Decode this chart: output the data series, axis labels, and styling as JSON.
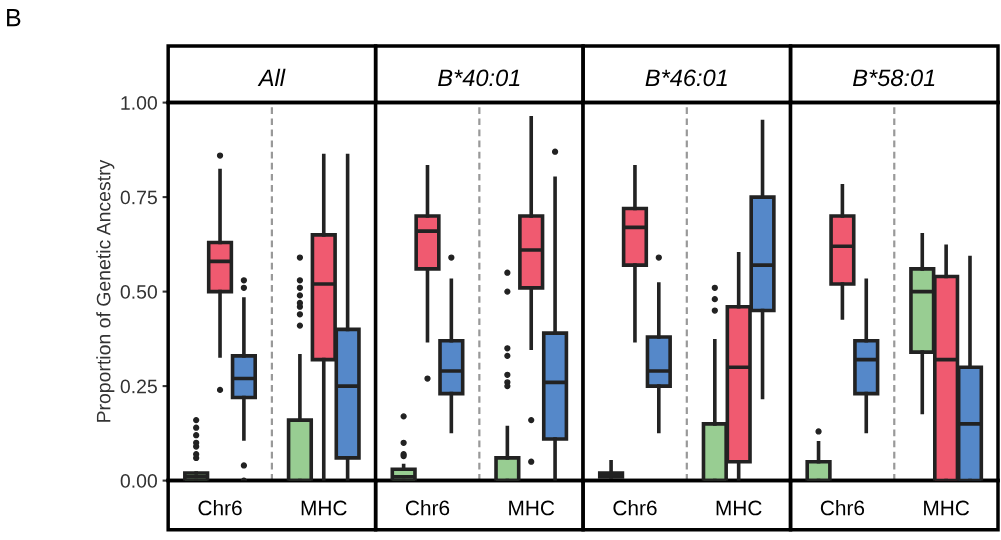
{
  "chart_data": [
    {
      "type": "box",
      "title": "All",
      "ylabel": "Proportion of Genetic Ancestry",
      "annotations": [
        "B"
      ],
      "categories": [
        "Chr6",
        "MHC"
      ],
      "ylim": [
        0,
        1.0
      ],
      "yticks": [
        {
          "value": 0,
          "label": "0.00"
        },
        {
          "value": 0.25,
          "label": "0.25"
        },
        {
          "value": 0.5,
          "label": "0.50"
        },
        {
          "value": 0.75,
          "label": "0.75"
        },
        {
          "value": 1.0,
          "label": "1.00"
        }
      ],
      "series": [
        {
          "color": "#98cd92",
          "boxes": [
            {
              "low": 0,
              "q1": 0,
              "median": 0.01,
              "q3": 0.02,
              "high": 0.02,
              "outliers": [
                0.16,
                0.14,
                0.12,
                0.1,
                0.09,
                0.07,
                0.06
              ]
            },
            {
              "low": 0,
              "q1": 0,
              "median": 0,
              "q3": 0.16,
              "high": 0.33,
              "outliers": [
                0.59,
                0.53,
                0.51,
                0.49,
                0.47,
                0.46,
                0.44,
                0.41
              ]
            }
          ]
        },
        {
          "color": "#f05a70",
          "boxes": [
            {
              "low": 0.33,
              "q1": 0.5,
              "median": 0.58,
              "q3": 0.63,
              "high": 0.82,
              "outliers": [
                0.86,
                0.24
              ]
            },
            {
              "low": 0,
              "q1": 0.32,
              "median": 0.52,
              "q3": 0.65,
              "high": 0.86
            }
          ]
        },
        {
          "color": "#5588c9",
          "boxes": [
            {
              "low": 0.11,
              "q1": 0.22,
              "median": 0.27,
              "q3": 0.33,
              "high": 0.48,
              "outliers": [
                0.53,
                0.51,
                0.04,
                0.0
              ]
            },
            {
              "low": 0,
              "q1": 0.06,
              "median": 0.25,
              "q3": 0.4,
              "high": 0.86
            }
          ]
        }
      ]
    },
    {
      "type": "box",
      "title": "B*40:01",
      "categories": [
        "Chr6",
        "MHC"
      ],
      "ylim": [
        0,
        1.0
      ],
      "tick_labels": "x",
      "series": [
        {
          "color": "#98cd92",
          "boxes": [
            {
              "low": 0,
              "q1": 0,
              "median": 0.01,
              "q3": 0.03,
              "high": 0.04,
              "outliers": [
                0.17,
                0.1,
                0.07,
                0.065
              ]
            },
            {
              "low": 0,
              "q1": 0,
              "median": 0,
              "q3": 0.06,
              "high": 0.14,
              "outliers": [
                0.55,
                0.5,
                0.35,
                0.33,
                0.28,
                0.26,
                0.25
              ]
            }
          ]
        },
        {
          "color": "#f05a70",
          "boxes": [
            {
              "low": 0.37,
              "q1": 0.56,
              "median": 0.66,
              "q3": 0.7,
              "high": 0.83,
              "outliers": [
                0.27
              ]
            },
            {
              "low": 0.35,
              "q1": 0.51,
              "median": 0.61,
              "q3": 0.7,
              "high": 0.96,
              "outliers": [
                0.16,
                0.05
              ]
            }
          ]
        },
        {
          "color": "#5588c9",
          "boxes": [
            {
              "low": 0.13,
              "q1": 0.23,
              "median": 0.29,
              "q3": 0.37,
              "high": 0.53,
              "outliers": [
                0.59
              ]
            },
            {
              "low": 0,
              "q1": 0.11,
              "median": 0.26,
              "q3": 0.39,
              "high": 0.8,
              "outliers": [
                0.87
              ]
            }
          ]
        }
      ]
    },
    {
      "type": "box",
      "title": "B*46:01",
      "categories": [
        "Chr6",
        "MHC"
      ],
      "ylim": [
        0,
        1.0
      ],
      "tick_labels": "x",
      "series": [
        {
          "color": "#98cd92",
          "boxes": [
            {
              "low": 0.01,
              "q1": 0.01,
              "median": 0.015,
              "q3": 0.02,
              "high": 0.05
            },
            {
              "low": 0,
              "q1": 0,
              "median": 0,
              "q3": 0.15,
              "high": 0.37,
              "outliers": [
                0.51,
                0.48,
                0.45
              ]
            }
          ]
        },
        {
          "color": "#f05a70",
          "boxes": [
            {
              "low": 0.37,
              "q1": 0.57,
              "median": 0.67,
              "q3": 0.72,
              "high": 0.83
            },
            {
              "low": 0,
              "q1": 0.05,
              "median": 0.3,
              "q3": 0.46,
              "high": 0.6
            }
          ]
        },
        {
          "color": "#5588c9",
          "boxes": [
            {
              "low": 0.13,
              "q1": 0.25,
              "median": 0.29,
              "q3": 0.38,
              "high": 0.52,
              "outliers": [
                0.59
              ]
            },
            {
              "low": 0.22,
              "q1": 0.45,
              "median": 0.57,
              "q3": 0.75,
              "high": 0.95
            }
          ]
        }
      ]
    },
    {
      "type": "box",
      "title": "B*58:01",
      "categories": [
        "Chr6",
        "MHC"
      ],
      "ylim": [
        0,
        1.0
      ],
      "tick_labels": "x",
      "series": [
        {
          "color": "#98cd92",
          "boxes": [
            {
              "low": 0,
              "q1": 0,
              "median": 0,
              "q3": 0.05,
              "high": 0.1,
              "outliers": [
                0.13
              ]
            },
            {
              "low": 0.18,
              "q1": 0.34,
              "median": 0.5,
              "q3": 0.56,
              "high": 0.65
            }
          ]
        },
        {
          "color": "#f05a70",
          "boxes": [
            {
              "low": 0.43,
              "q1": 0.52,
              "median": 0.62,
              "q3": 0.7,
              "high": 0.78
            },
            {
              "low": 0,
              "q1": 0,
              "median": 0.32,
              "q3": 0.54,
              "high": 0.62
            }
          ]
        },
        {
          "color": "#5588c9",
          "boxes": [
            {
              "low": 0.13,
              "q1": 0.23,
              "median": 0.32,
              "q3": 0.37,
              "high": 0.53
            },
            {
              "low": 0,
              "q1": 0,
              "median": 0.15,
              "q3": 0.3,
              "high": 0.59
            }
          ]
        }
      ]
    }
  ]
}
